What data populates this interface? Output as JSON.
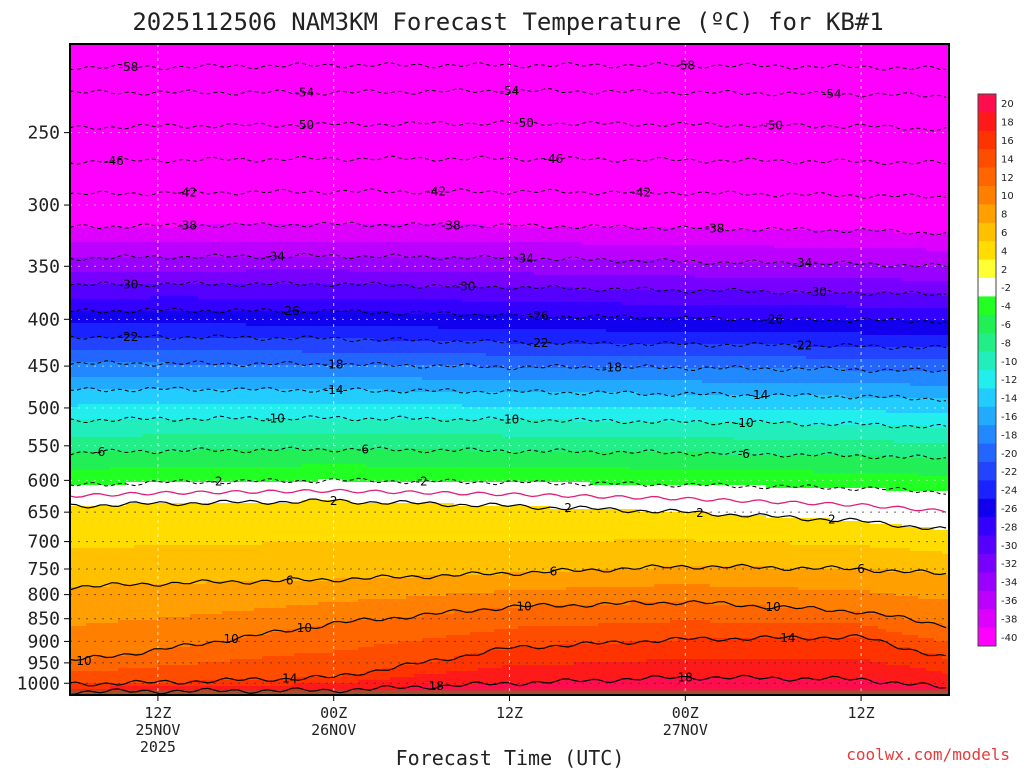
{
  "chart_data": {
    "type": "heatmap",
    "title": "2025112506 NAM3KM Forecast Temperature (ºC) for KB#1",
    "xlabel": "Forecast Time (UTC)",
    "ylabel": "",
    "y_axis": {
      "scale": "log",
      "unit": "hPa",
      "range": [
        200,
        1030
      ],
      "ticks": [
        250,
        300,
        350,
        400,
        450,
        500,
        550,
        600,
        650,
        700,
        750,
        800,
        850,
        900,
        950,
        1000
      ]
    },
    "x_axis": {
      "range": [
        "2025-11-25T06:00Z",
        "2025-11-27T18:00Z"
      ],
      "ticks": [
        {
          "time": "2025-11-25T12:00Z",
          "line1": "12Z",
          "line2": "25NOV",
          "line3": "2025"
        },
        {
          "time": "2025-11-26T00:00Z",
          "line1": "00Z",
          "line2": "26NOV",
          "line3": ""
        },
        {
          "time": "2025-11-26T12:00Z",
          "line1": "12Z",
          "line2": "",
          "line3": ""
        },
        {
          "time": "2025-11-27T00:00Z",
          "line1": "00Z",
          "line2": "27NOV",
          "line3": ""
        },
        {
          "time": "2025-11-27T12:00Z",
          "line1": "12Z",
          "line2": "",
          "line3": ""
        }
      ]
    },
    "colorbar": {
      "labels": [
        20,
        18,
        16,
        14,
        12,
        10,
        8,
        6,
        4,
        2,
        -2,
        -4,
        -6,
        -8,
        -10,
        -12,
        -14,
        -16,
        -18,
        -20,
        -22,
        -24,
        -26,
        -28,
        -30,
        -32,
        -34,
        -36,
        -38,
        -40
      ],
      "colors": [
        "#ff0d4d",
        "#ff1a1a",
        "#ff3300",
        "#ff4d00",
        "#ff6600",
        "#ff8000",
        "#ffa000",
        "#ffc000",
        "#ffdd00",
        "#ffff33",
        "#ffffff",
        "#22ff22",
        "#22ee55",
        "#22ee88",
        "#22eebb",
        "#22eeee",
        "#22ccff",
        "#22aaff",
        "#2288ff",
        "#2266ff",
        "#2244ff",
        "#1a22ff",
        "#1100ee",
        "#3300ff",
        "#5500ff",
        "#7700ff",
        "#9900ff",
        "#bb00ff",
        "#dd00ff",
        "#ff00ff"
      ]
    },
    "isotherm_profile_times": [
      "2025-11-25T06:00Z",
      "2025-11-25T12:00Z",
      "2025-11-26T00:00Z",
      "2025-11-26T12:00Z",
      "2025-11-27T00:00Z",
      "2025-11-27T12:00Z",
      "2025-11-27T18:00Z"
    ],
    "isotherm_pressure_hPa": {
      "-58": [
        212,
        212,
        211,
        211,
        211,
        212,
        213
      ],
      "-54": [
        226,
        226,
        226,
        225,
        226,
        227,
        228
      ],
      "-50": [
        247,
        246,
        245,
        244,
        245,
        246,
        248
      ],
      "-46": [
        269,
        268,
        267,
        267,
        268,
        269,
        270
      ],
      "-42": [
        292,
        291,
        290,
        290,
        291,
        293,
        294
      ],
      "-38": [
        317,
        316,
        315,
        316,
        318,
        320,
        322
      ],
      "-34": [
        343,
        342,
        341,
        343,
        346,
        348,
        350
      ],
      "-30": [
        367,
        366,
        366,
        369,
        372,
        374,
        376
      ],
      "-26": [
        392,
        391,
        392,
        396,
        399,
        401,
        402
      ],
      "-22": [
        418,
        418,
        420,
        424,
        426,
        428,
        430
      ],
      "-18": [
        447,
        447,
        448,
        451,
        452,
        454,
        456
      ],
      "-14": [
        478,
        477,
        478,
        480,
        483,
        486,
        489
      ],
      "-10": [
        516,
        514,
        513,
        515,
        518,
        521,
        525
      ],
      "-6": [
        560,
        557,
        555,
        557,
        560,
        564,
        568
      ],
      "-2": [
        608,
        603,
        600,
        603,
        607,
        612,
        618
      ],
      "2": [
        640,
        636,
        632,
        640,
        650,
        665,
        680
      ],
      "6": [
        785,
        778,
        770,
        758,
        745,
        750,
        760
      ],
      "10": [
        945,
        920,
        860,
        825,
        815,
        835,
        865
      ],
      "14": [
        1002,
        998,
        985,
        915,
        895,
        890,
        940
      ],
      "18": [
        1022,
        1020,
        1018,
        1000,
        985,
        990,
        1012
      ]
    },
    "contour_labels": [
      {
        "text": "-58",
        "time": "2025-11-25T10:00Z",
        "temp": -58
      },
      {
        "text": "-58",
        "time": "2025-11-27T00:00Z",
        "temp": -58
      },
      {
        "text": "-54",
        "time": "2025-11-25T22:00Z",
        "temp": -54
      },
      {
        "text": "-54",
        "time": "2025-11-26T12:00Z",
        "temp": -54
      },
      {
        "text": "-54",
        "time": "2025-11-27T10:00Z",
        "temp": -54
      },
      {
        "text": "-50",
        "time": "2025-11-25T22:00Z",
        "temp": -50
      },
      {
        "text": "-50",
        "time": "2025-11-26T13:00Z",
        "temp": -50
      },
      {
        "text": "-50",
        "time": "2025-11-27T06:00Z",
        "temp": -50
      },
      {
        "text": "-46",
        "time": "2025-11-25T09:00Z",
        "temp": -46
      },
      {
        "text": "-46",
        "time": "2025-11-26T15:00Z",
        "temp": -46
      },
      {
        "text": "-42",
        "time": "2025-11-25T14:00Z",
        "temp": -42
      },
      {
        "text": "-42",
        "time": "2025-11-26T07:00Z",
        "temp": -42
      },
      {
        "text": "-42",
        "time": "2025-11-26T21:00Z",
        "temp": -42
      },
      {
        "text": "-38",
        "time": "2025-11-25T14:00Z",
        "temp": -38
      },
      {
        "text": "-38",
        "time": "2025-11-26T08:00Z",
        "temp": -38
      },
      {
        "text": "-38",
        "time": "2025-11-27T02:00Z",
        "temp": -38
      },
      {
        "text": "-34",
        "time": "2025-11-25T20:00Z",
        "temp": -34
      },
      {
        "text": "-34",
        "time": "2025-11-26T13:00Z",
        "temp": -34
      },
      {
        "text": "-34",
        "time": "2025-11-27T08:00Z",
        "temp": -34
      },
      {
        "text": "-30",
        "time": "2025-11-25T10:00Z",
        "temp": -30
      },
      {
        "text": "-30",
        "time": "2025-11-26T09:00Z",
        "temp": -30
      },
      {
        "text": "-30",
        "time": "2025-11-27T09:00Z",
        "temp": -30
      },
      {
        "text": "-26",
        "time": "2025-11-25T21:00Z",
        "temp": -26
      },
      {
        "text": "-26",
        "time": "2025-11-26T14:00Z",
        "temp": -26
      },
      {
        "text": "-26",
        "time": "2025-11-27T06:00Z",
        "temp": -26
      },
      {
        "text": "-22",
        "time": "2025-11-25T10:00Z",
        "temp": -22
      },
      {
        "text": "-22",
        "time": "2025-11-26T14:00Z",
        "temp": -22
      },
      {
        "text": "-22",
        "time": "2025-11-27T08:00Z",
        "temp": -22
      },
      {
        "text": "-18",
        "time": "2025-11-26T00:00Z",
        "temp": -18
      },
      {
        "text": "-18",
        "time": "2025-11-26T19:00Z",
        "temp": -18
      },
      {
        "text": "-14",
        "time": "2025-11-26T00:00Z",
        "temp": -14
      },
      {
        "text": "-14",
        "time": "2025-11-27T05:00Z",
        "temp": -14
      },
      {
        "text": "-10",
        "time": "2025-11-25T20:00Z",
        "temp": -10
      },
      {
        "text": "-10",
        "time": "2025-11-26T12:00Z",
        "temp": -10
      },
      {
        "text": "-10",
        "time": "2025-11-27T04:00Z",
        "temp": -10
      },
      {
        "text": "-6",
        "time": "2025-11-25T08:00Z",
        "temp": -6
      },
      {
        "text": "-6",
        "time": "2025-11-26T02:00Z",
        "temp": -6
      },
      {
        "text": "-6",
        "time": "2025-11-27T04:00Z",
        "temp": -6
      },
      {
        "text": "-2",
        "time": "2025-11-25T16:00Z",
        "temp": -2
      },
      {
        "text": "-2",
        "time": "2025-11-26T06:00Z",
        "temp": -2
      },
      {
        "text": "2",
        "time": "2025-11-26T00:00Z",
        "temp": 2
      },
      {
        "text": "2",
        "time": "2025-11-26T16:00Z",
        "temp": 2
      },
      {
        "text": "2",
        "time": "2025-11-27T01:00Z",
        "temp": 2
      },
      {
        "text": "2",
        "time": "2025-11-27T10:00Z",
        "temp": 2
      },
      {
        "text": "6",
        "time": "2025-11-25T21:00Z",
        "temp": 6
      },
      {
        "text": "6",
        "time": "2025-11-26T15:00Z",
        "temp": 6
      },
      {
        "text": "6",
        "time": "2025-11-27T12:00Z",
        "temp": 6
      },
      {
        "text": "10",
        "time": "2025-11-25T06:00Z",
        "temp": 10
      },
      {
        "text": "10",
        "time": "2025-11-25T17:00Z",
        "temp": 10
      },
      {
        "text": "10",
        "time": "2025-11-25T22:00Z",
        "temp": 10
      },
      {
        "text": "10",
        "time": "2025-11-26T13:00Z",
        "temp": 10
      },
      {
        "text": "10",
        "time": "2025-11-27T06:00Z",
        "temp": 10
      },
      {
        "text": "14",
        "time": "2025-11-25T21:00Z",
        "temp": 14
      },
      {
        "text": "14",
        "time": "2025-11-27T07:00Z",
        "temp": 14
      },
      {
        "text": "18",
        "time": "2025-11-26T07:00Z",
        "temp": 18
      },
      {
        "text": "18",
        "time": "2025-11-27T00:00Z",
        "temp": 18
      }
    ],
    "surface_band_color": "#a0522d",
    "grid": true
  },
  "credit": "coolwx.com/models"
}
